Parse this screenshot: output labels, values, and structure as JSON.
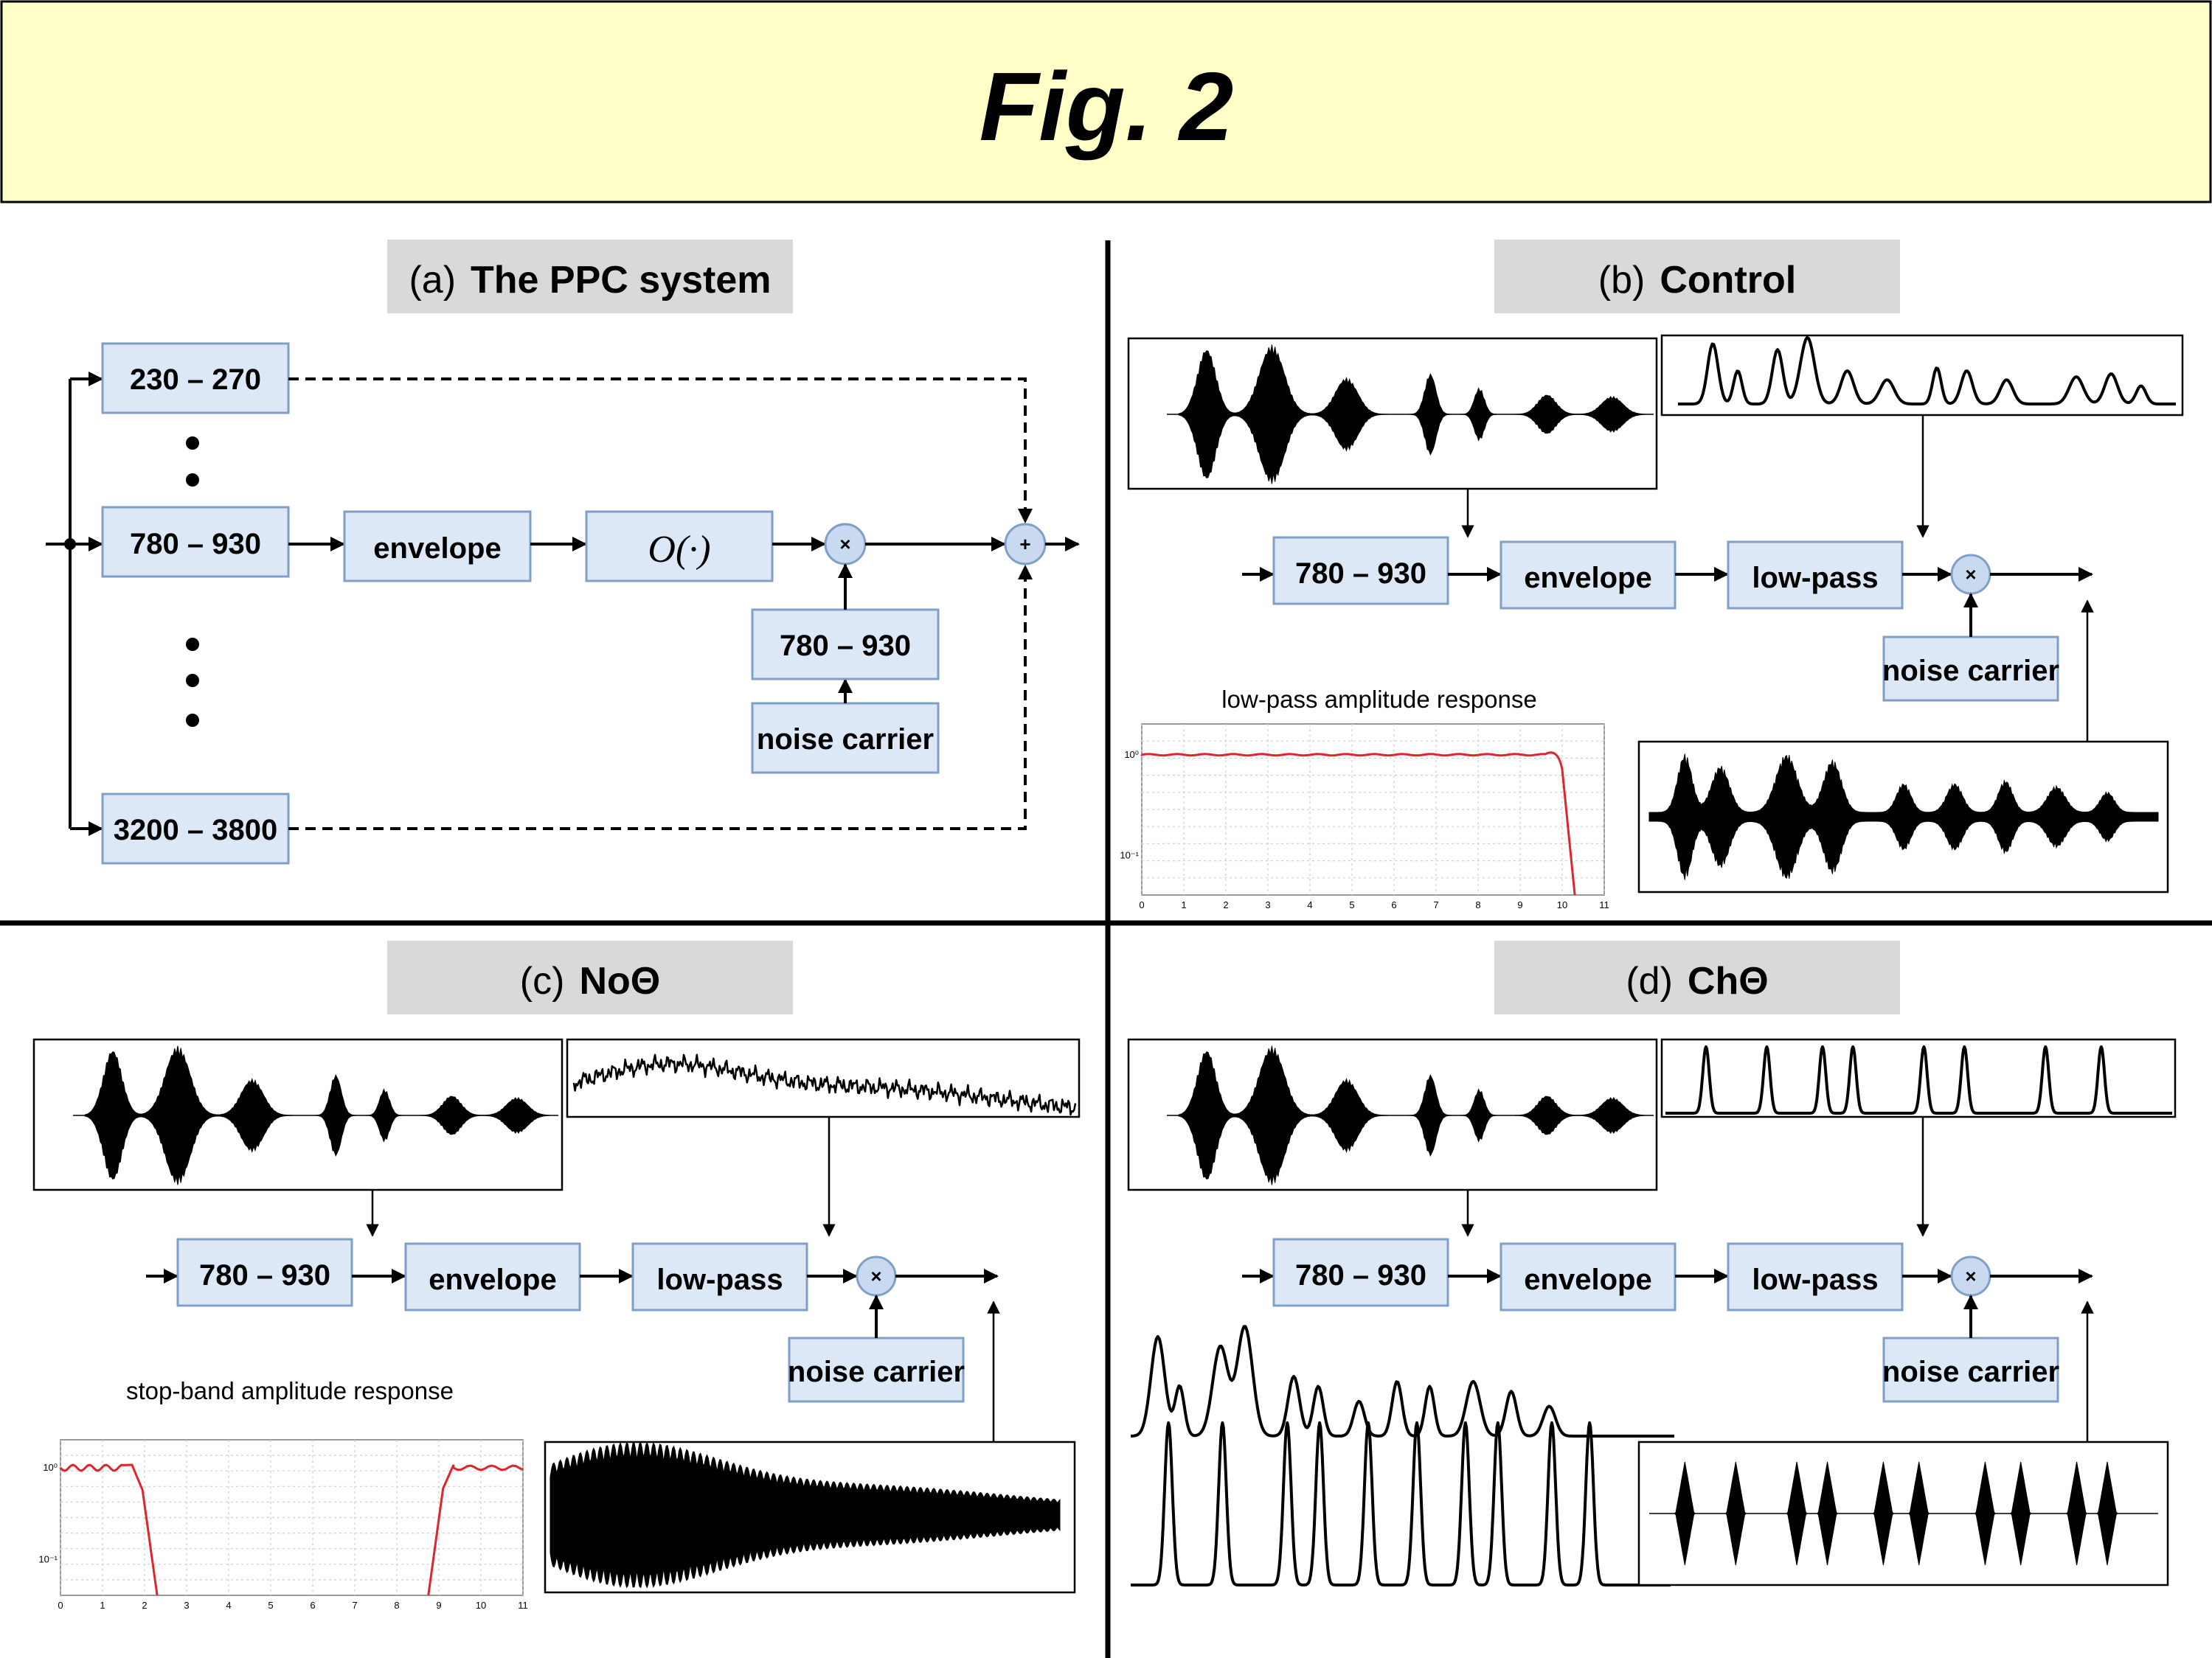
{
  "title": "Fig. 2",
  "colors": {
    "banner": "#ffffc7",
    "box_fill": "#dce8f6",
    "box_stroke": "#7f9fc8",
    "header_fill": "#d9d9d9",
    "response_curve": "#e0242b"
  },
  "panel_a": {
    "label": "(a)",
    "name": "The PPC system",
    "band_top": "230 – 270",
    "band_mid": "780 – 930",
    "band_bottom": "3200 – 3800",
    "envelope": "envelope",
    "operator": "O(·)",
    "carrier_band": "780 – 930",
    "noise": "noise carrier",
    "multiply": "×",
    "sum": "+"
  },
  "panel_b": {
    "label": "(b)",
    "name": "Control",
    "band": "780 – 930",
    "envelope": "envelope",
    "lowpass": "low-pass",
    "noise": "noise carrier",
    "multiply": "×",
    "plot_title": "low-pass amplitude response",
    "xticks": [
      "0",
      "1",
      "2",
      "3",
      "4",
      "5",
      "6",
      "7",
      "8",
      "9",
      "10",
      "11"
    ],
    "yticks": [
      "10⁰",
      "10⁻¹"
    ]
  },
  "panel_c": {
    "label": "(c)",
    "name": "NoΘ",
    "band": "780 – 930",
    "envelope": "envelope",
    "lowpass": "low-pass",
    "noise": "noise carrier",
    "multiply": "×",
    "plot_title": "stop-band amplitude response",
    "xticks": [
      "0",
      "1",
      "2",
      "3",
      "4",
      "5",
      "6",
      "7",
      "8",
      "9",
      "10",
      "11"
    ],
    "yticks": [
      "10⁰",
      "10⁻¹"
    ]
  },
  "panel_d": {
    "label": "(d)",
    "name": "ChΘ",
    "band": "780 – 930",
    "envelope": "envelope",
    "lowpass": "low-pass",
    "noise": "noise carrier",
    "multiply": "×"
  }
}
